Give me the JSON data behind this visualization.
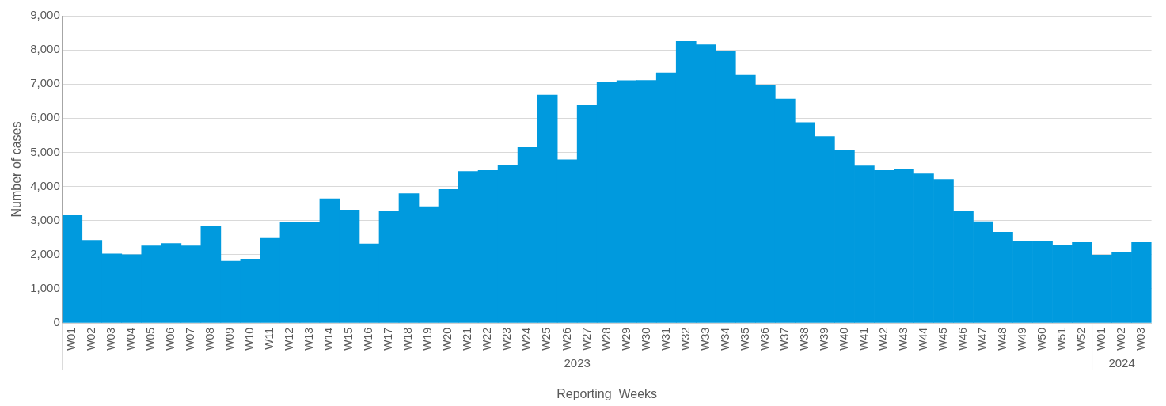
{
  "chart_data": {
    "type": "bar",
    "xlabel": "Reporting  Weeks",
    "ylabel": "Number of cases",
    "categories": [
      "W01",
      "W02",
      "W03",
      "W04",
      "W05",
      "W06",
      "W07",
      "W08",
      "W09",
      "W10",
      "W11",
      "W12",
      "W13",
      "W14",
      "W15",
      "W16",
      "W17",
      "W18",
      "W19",
      "W20",
      "W21",
      "W22",
      "W23",
      "W24",
      "W25",
      "W26",
      "W27",
      "W28",
      "W29",
      "W30",
      "W31",
      "W32",
      "W33",
      "W34",
      "W35",
      "W36",
      "W37",
      "W38",
      "W39",
      "W40",
      "W41",
      "W42",
      "W43",
      "W44",
      "W45",
      "W46",
      "W47",
      "W48",
      "W49",
      "W50",
      "W51",
      "W52",
      "W01",
      "W02",
      "W03"
    ],
    "values": [
      3150,
      2420,
      2020,
      2000,
      2260,
      2330,
      2260,
      2820,
      1810,
      1870,
      2480,
      2940,
      2950,
      3640,
      3310,
      2320,
      3270,
      3790,
      3410,
      3910,
      4440,
      4470,
      4620,
      5140,
      6680,
      4780,
      6370,
      7060,
      7100,
      7110,
      7330,
      8250,
      8150,
      7950,
      7260,
      6950,
      6560,
      5870,
      5460,
      5050,
      4600,
      4470,
      4500,
      4370,
      4210,
      3270,
      2970,
      2660,
      2380,
      2390,
      2280,
      2360,
      1990,
      2060,
      2360
    ],
    "color": "#009ade",
    "ylim": [
      0,
      9000
    ],
    "yticks": [
      0,
      {
        "value": 1000,
        "label": "1,000"
      },
      {
        "value": 2000,
        "label": "2,000"
      },
      {
        "value": 3000,
        "label": "3,000"
      },
      {
        "value": 4000,
        "label": "4,000"
      },
      {
        "value": 5000,
        "label": "5,000"
      },
      {
        "value": 6000,
        "label": "6,000"
      },
      {
        "value": 7000,
        "label": "7,000"
      },
      {
        "value": 8000,
        "label": "8,000"
      },
      {
        "value": 9000,
        "label": "9,000"
      }
    ],
    "grid": "y",
    "legend": false,
    "annotations": [
      "2023",
      "2024"
    ]
  }
}
